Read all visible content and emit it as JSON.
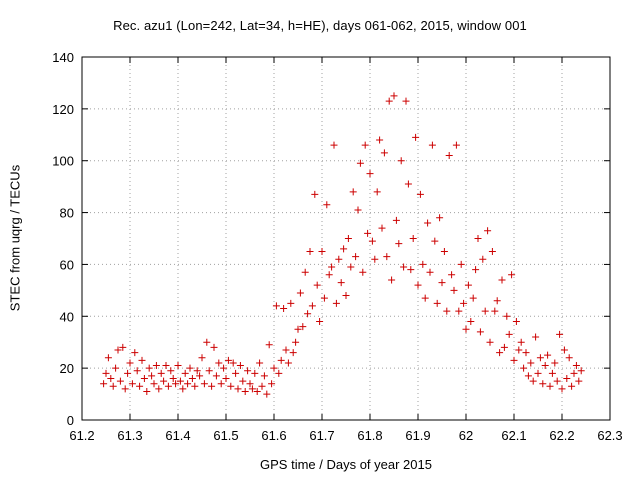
{
  "chart_data": {
    "type": "scatter",
    "title": "Rec. azu1 (Lon=242, Lat=34, h=HE), days 061-062, 2015, window 001",
    "xlabel": "GPS time / Days of year 2015",
    "ylabel": "STEC from uqrg / TECUs",
    "xlim": [
      61.2,
      62.3
    ],
    "ylim": [
      0,
      140
    ],
    "x_ticks": [
      "61.2",
      "61.3",
      "61.4",
      "61.5",
      "61.6",
      "61.7",
      "61.8",
      "61.9",
      "62",
      "62.1",
      "62.2",
      "62.3"
    ],
    "y_ticks": [
      "0",
      "20",
      "40",
      "60",
      "80",
      "100",
      "120",
      "140"
    ],
    "grid": true,
    "marker": "+",
    "color": "#cc0000",
    "points": [
      [
        61.245,
        14
      ],
      [
        61.25,
        18
      ],
      [
        61.255,
        24
      ],
      [
        61.26,
        16
      ],
      [
        61.265,
        13
      ],
      [
        61.27,
        20
      ],
      [
        61.275,
        27
      ],
      [
        61.28,
        15
      ],
      [
        61.285,
        28
      ],
      [
        61.29,
        12
      ],
      [
        61.295,
        18
      ],
      [
        61.3,
        22
      ],
      [
        61.305,
        14
      ],
      [
        61.31,
        26
      ],
      [
        61.315,
        19
      ],
      [
        61.32,
        13
      ],
      [
        61.325,
        23
      ],
      [
        61.33,
        16
      ],
      [
        61.335,
        11
      ],
      [
        61.34,
        20
      ],
      [
        61.345,
        17
      ],
      [
        61.35,
        14
      ],
      [
        61.355,
        21
      ],
      [
        61.36,
        12
      ],
      [
        61.365,
        18
      ],
      [
        61.37,
        15
      ],
      [
        61.375,
        21
      ],
      [
        61.38,
        13
      ],
      [
        61.385,
        19
      ],
      [
        61.39,
        16
      ],
      [
        61.395,
        14
      ],
      [
        61.4,
        21
      ],
      [
        61.405,
        15
      ],
      [
        61.41,
        12
      ],
      [
        61.415,
        18
      ],
      [
        61.42,
        14
      ],
      [
        61.425,
        20
      ],
      [
        61.43,
        16
      ],
      [
        61.435,
        13
      ],
      [
        61.44,
        19
      ],
      [
        61.445,
        17
      ],
      [
        61.45,
        24
      ],
      [
        61.455,
        14
      ],
      [
        61.46,
        30
      ],
      [
        61.465,
        19
      ],
      [
        61.47,
        13
      ],
      [
        61.475,
        28
      ],
      [
        61.48,
        17
      ],
      [
        61.485,
        22
      ],
      [
        61.49,
        14
      ],
      [
        61.495,
        20
      ],
      [
        61.5,
        16
      ],
      [
        61.505,
        23
      ],
      [
        61.51,
        13
      ],
      [
        61.515,
        22
      ],
      [
        61.52,
        18
      ],
      [
        61.525,
        12
      ],
      [
        61.53,
        21
      ],
      [
        61.535,
        15
      ],
      [
        61.54,
        11
      ],
      [
        61.545,
        19
      ],
      [
        61.55,
        14
      ],
      [
        61.555,
        12
      ],
      [
        61.56,
        18
      ],
      [
        61.565,
        11
      ],
      [
        61.57,
        22
      ],
      [
        61.575,
        13
      ],
      [
        61.58,
        17
      ],
      [
        61.585,
        10
      ],
      [
        61.59,
        29
      ],
      [
        61.595,
        14
      ],
      [
        61.6,
        20
      ],
      [
        61.605,
        44
      ],
      [
        61.61,
        18
      ],
      [
        61.615,
        23
      ],
      [
        61.62,
        43
      ],
      [
        61.625,
        27
      ],
      [
        61.63,
        22
      ],
      [
        61.635,
        45
      ],
      [
        61.64,
        26
      ],
      [
        61.645,
        30
      ],
      [
        61.65,
        35
      ],
      [
        61.655,
        49
      ],
      [
        61.66,
        36
      ],
      [
        61.665,
        57
      ],
      [
        61.67,
        41
      ],
      [
        61.675,
        65
      ],
      [
        61.68,
        44
      ],
      [
        61.685,
        87
      ],
      [
        61.69,
        52
      ],
      [
        61.695,
        38
      ],
      [
        61.7,
        65
      ],
      [
        61.705,
        47
      ],
      [
        61.71,
        83
      ],
      [
        61.715,
        56
      ],
      [
        61.72,
        59
      ],
      [
        61.725,
        106
      ],
      [
        61.73,
        45
      ],
      [
        61.735,
        62
      ],
      [
        61.74,
        53
      ],
      [
        61.745,
        66
      ],
      [
        61.75,
        48
      ],
      [
        61.755,
        70
      ],
      [
        61.76,
        59
      ],
      [
        61.765,
        88
      ],
      [
        61.77,
        63
      ],
      [
        61.775,
        81
      ],
      [
        61.78,
        99
      ],
      [
        61.785,
        57
      ],
      [
        61.79,
        106
      ],
      [
        61.795,
        72
      ],
      [
        61.8,
        95
      ],
      [
        61.805,
        69
      ],
      [
        61.81,
        62
      ],
      [
        61.815,
        88
      ],
      [
        61.82,
        108
      ],
      [
        61.825,
        74
      ],
      [
        61.83,
        103
      ],
      [
        61.835,
        63
      ],
      [
        61.84,
        123
      ],
      [
        61.845,
        54
      ],
      [
        61.85,
        125
      ],
      [
        61.855,
        77
      ],
      [
        61.86,
        68
      ],
      [
        61.865,
        100
      ],
      [
        61.87,
        59
      ],
      [
        61.875,
        123
      ],
      [
        61.88,
        91
      ],
      [
        61.885,
        58
      ],
      [
        61.89,
        70
      ],
      [
        61.895,
        109
      ],
      [
        61.9,
        52
      ],
      [
        61.905,
        87
      ],
      [
        61.91,
        60
      ],
      [
        61.915,
        47
      ],
      [
        61.92,
        76
      ],
      [
        61.925,
        57
      ],
      [
        61.93,
        106
      ],
      [
        61.935,
        69
      ],
      [
        61.94,
        45
      ],
      [
        61.945,
        78
      ],
      [
        61.95,
        53
      ],
      [
        61.955,
        65
      ],
      [
        61.96,
        42
      ],
      [
        61.965,
        102
      ],
      [
        61.97,
        56
      ],
      [
        61.975,
        50
      ],
      [
        61.98,
        106
      ],
      [
        61.985,
        42
      ],
      [
        61.99,
        60
      ],
      [
        61.995,
        45
      ],
      [
        62.0,
        35
      ],
      [
        62.005,
        52
      ],
      [
        62.01,
        38
      ],
      [
        62.015,
        47
      ],
      [
        62.02,
        58
      ],
      [
        62.025,
        70
      ],
      [
        62.03,
        34
      ],
      [
        62.035,
        62
      ],
      [
        62.04,
        42
      ],
      [
        62.045,
        73
      ],
      [
        62.05,
        30
      ],
      [
        62.055,
        65
      ],
      [
        62.06,
        42
      ],
      [
        62.065,
        46
      ],
      [
        62.07,
        26
      ],
      [
        62.075,
        54
      ],
      [
        62.08,
        28
      ],
      [
        62.085,
        40
      ],
      [
        62.09,
        33
      ],
      [
        62.095,
        56
      ],
      [
        62.1,
        23
      ],
      [
        62.105,
        38
      ],
      [
        62.11,
        27
      ],
      [
        62.115,
        30
      ],
      [
        62.12,
        20
      ],
      [
        62.125,
        26
      ],
      [
        62.13,
        17
      ],
      [
        62.135,
        22
      ],
      [
        62.14,
        15
      ],
      [
        62.145,
        32
      ],
      [
        62.15,
        18
      ],
      [
        62.155,
        24
      ],
      [
        62.16,
        14
      ],
      [
        62.165,
        21
      ],
      [
        62.17,
        25
      ],
      [
        62.175,
        13
      ],
      [
        62.18,
        18
      ],
      [
        62.185,
        22
      ],
      [
        62.19,
        15
      ],
      [
        62.195,
        33
      ],
      [
        62.2,
        12
      ],
      [
        62.205,
        27
      ],
      [
        62.21,
        16
      ],
      [
        62.215,
        24
      ],
      [
        62.22,
        13
      ],
      [
        62.225,
        18
      ],
      [
        62.23,
        21
      ],
      [
        62.235,
        15
      ],
      [
        62.24,
        19
      ]
    ]
  }
}
